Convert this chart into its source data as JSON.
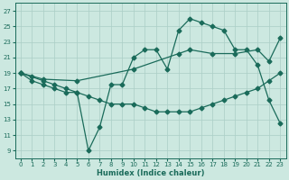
{
  "title": "",
  "xlabel": "Humidex (Indice chaleur)",
  "bg_color": "#cce8e0",
  "grid_color": "#aacec6",
  "line_color": "#1a6b5a",
  "xlim": [
    -0.5,
    23.5
  ],
  "ylim": [
    8.0,
    28.0
  ],
  "xticks": [
    0,
    1,
    2,
    3,
    4,
    5,
    6,
    7,
    8,
    9,
    10,
    11,
    12,
    13,
    14,
    15,
    16,
    17,
    18,
    19,
    20,
    21,
    22,
    23
  ],
  "yticks": [
    9,
    11,
    13,
    15,
    17,
    19,
    21,
    23,
    25,
    27
  ],
  "curve1_x": [
    0,
    1,
    2,
    3,
    4,
    5,
    6,
    7,
    8,
    9,
    10,
    11,
    12,
    13,
    14,
    15,
    16,
    17,
    18,
    19,
    20,
    21,
    22,
    23
  ],
  "curve1_y": [
    19,
    18,
    17.5,
    17,
    16.5,
    16.5,
    9,
    12,
    17.5,
    17.5,
    21,
    22,
    22,
    19.5,
    24.5,
    26,
    25.5,
    25,
    24.5,
    22,
    22,
    20,
    15.5,
    12.5
  ],
  "curve2_x": [
    0,
    2,
    5,
    10,
    14,
    15,
    17,
    19,
    21,
    22,
    23
  ],
  "curve2_y": [
    19,
    18.2,
    18,
    19.5,
    21.5,
    22,
    21.5,
    21.5,
    22,
    20.5,
    23.5
  ],
  "curve3_x": [
    0,
    1,
    2,
    3,
    4,
    5,
    6,
    7,
    8,
    9,
    10,
    11,
    12,
    13,
    14,
    15,
    16,
    17,
    18,
    19,
    20,
    21,
    22,
    23
  ],
  "curve3_y": [
    19,
    18.5,
    18,
    17.5,
    17,
    16.5,
    16,
    15.5,
    15,
    15,
    15,
    14.5,
    14,
    14,
    14,
    14,
    14.5,
    15,
    15.5,
    16,
    16.5,
    17,
    18,
    19
  ],
  "tick_fontsize": 5,
  "xlabel_fontsize": 6,
  "marker_size": 2.5,
  "line_width": 0.9
}
